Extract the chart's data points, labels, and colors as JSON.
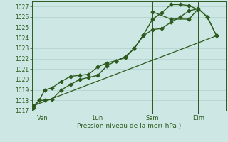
{
  "bg_color": "#cde8e4",
  "grid_color": "#b0d0cc",
  "line_color": "#2d5a1e",
  "xlabel": "Pression niveau de la mer( hPa )",
  "ylim": [
    1017,
    1027.5
  ],
  "yticks": [
    1017,
    1018,
    1019,
    1020,
    1021,
    1022,
    1023,
    1024,
    1025,
    1026,
    1027
  ],
  "day_labels": [
    "Ven",
    "Lun",
    "Sam",
    "Dim"
  ],
  "day_positions": [
    0.5,
    3.5,
    6.5,
    9.0
  ],
  "xlim": [
    -0.1,
    10.5
  ],
  "series1_x": [
    0.0,
    0.3,
    0.6,
    1.0,
    1.5,
    2.0,
    2.5,
    3.0,
    3.5,
    4.0,
    4.5,
    5.0,
    5.5,
    6.0,
    6.5,
    7.0,
    7.5,
    8.0,
    8.5,
    9.0
  ],
  "series1_y": [
    1017.3,
    1018.0,
    1018.0,
    1018.1,
    1019.0,
    1019.5,
    1020.0,
    1020.2,
    1020.4,
    1021.3,
    1021.8,
    1022.2,
    1023.0,
    1024.3,
    1025.8,
    1026.4,
    1027.2,
    1027.2,
    1027.1,
    1026.7
  ],
  "series2_x": [
    0.0,
    0.3,
    0.6,
    1.0,
    1.5,
    2.0,
    2.5,
    3.0,
    3.5,
    4.0,
    4.5,
    5.0,
    5.5,
    6.0,
    6.5,
    7.0,
    7.5,
    8.0,
    8.5,
    9.0,
    9.5,
    10.0
  ],
  "series2_y": [
    1017.5,
    1018.0,
    1019.0,
    1019.2,
    1019.8,
    1020.3,
    1020.4,
    1020.5,
    1021.2,
    1021.6,
    1021.8,
    1022.1,
    1023.0,
    1024.2,
    1024.8,
    1024.9,
    1025.5,
    1026.0,
    1026.6,
    1026.8,
    1026.0,
    1024.2
  ],
  "series3_x": [
    0.0,
    10.0
  ],
  "series3_y": [
    1017.5,
    1024.2
  ],
  "series_right_x": [
    6.5,
    7.5,
    8.5,
    9.0,
    9.5,
    10.0
  ],
  "series_right_y": [
    1026.5,
    1025.8,
    1025.8,
    1026.8,
    1026.0,
    1024.2
  ],
  "marker_size": 2.5,
  "lw_main": 1.0,
  "lw_straight": 0.9,
  "ytick_fontsize": 5.5,
  "xtick_fontsize": 6.0,
  "xlabel_fontsize": 6.5
}
